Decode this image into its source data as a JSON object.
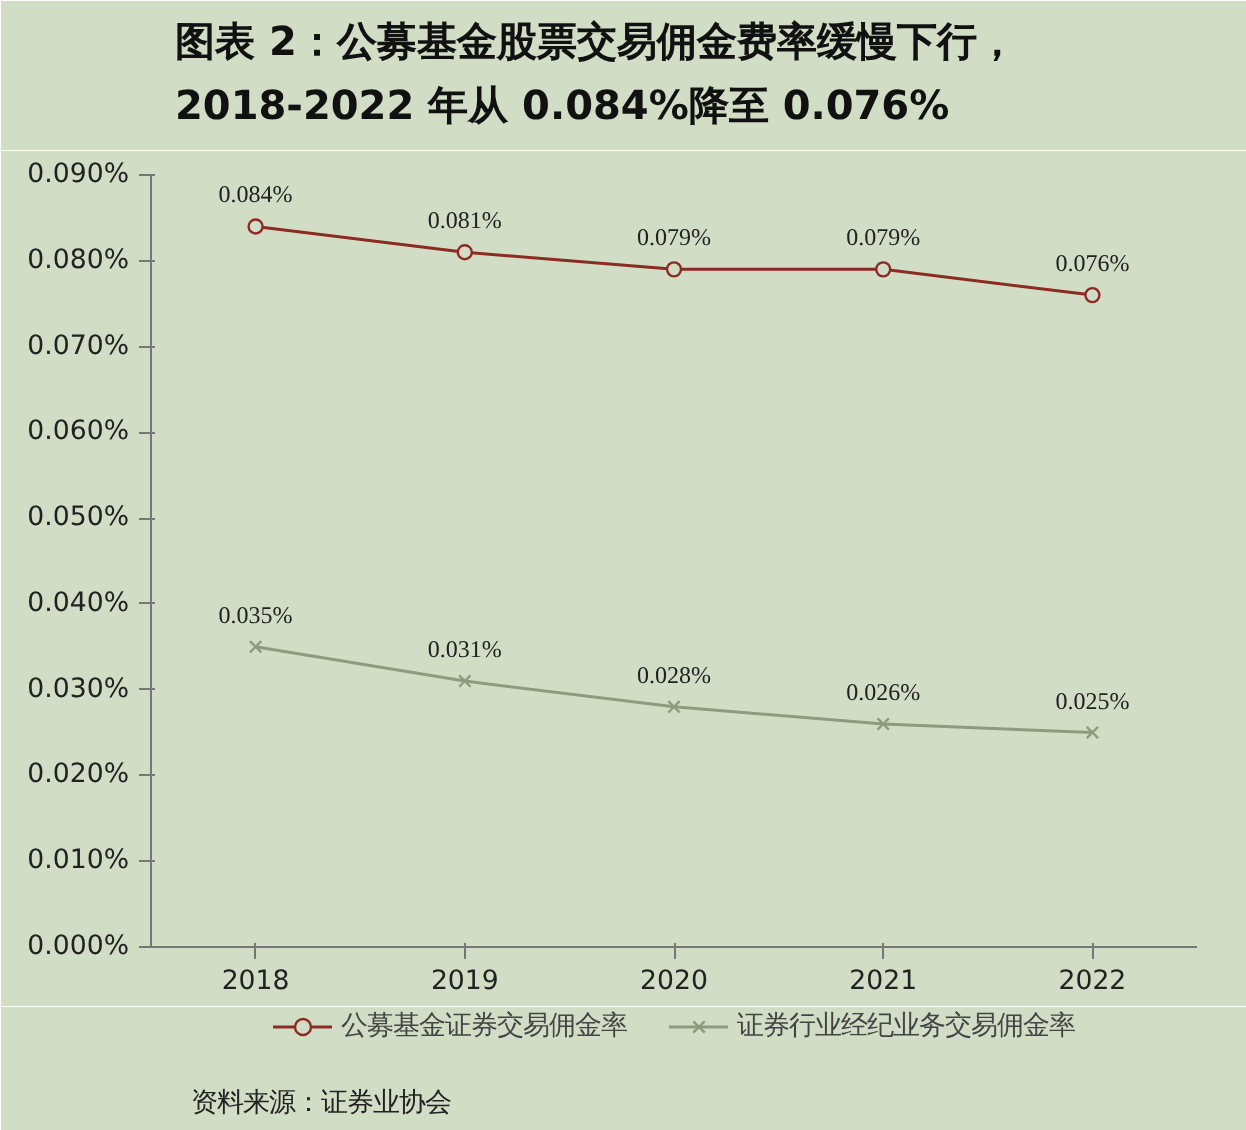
{
  "chart_data": {
    "type": "line",
    "title": "图表 2：公募基金股票交易佣金费率缓慢下行，\n2018-2022 年从 0.084%降至 0.076%",
    "categories": [
      "2018",
      "2019",
      "2020",
      "2021",
      "2022"
    ],
    "series": [
      {
        "name": "公募基金证券交易佣金率",
        "color": "#8b2b24",
        "marker": "circle",
        "values": [
          0.084,
          0.081,
          0.079,
          0.079,
          0.076
        ],
        "value_labels": [
          "0.084%",
          "0.081%",
          "0.079%",
          "0.079%",
          "0.076%"
        ]
      },
      {
        "name": "证券行业经纪业务交易佣金率",
        "color": "#8f9a80",
        "marker": "cross",
        "values": [
          0.035,
          0.031,
          0.028,
          0.026,
          0.025
        ],
        "value_labels": [
          "0.035%",
          "0.031%",
          "0.028%",
          "0.026%",
          "0.025%"
        ]
      }
    ],
    "ylim": [
      0,
      0.09
    ],
    "yticks": [
      {
        "value": 0,
        "label": "0.000%"
      },
      {
        "value": 0.01,
        "label": "0.010%"
      },
      {
        "value": 0.02,
        "label": "0.020%"
      },
      {
        "value": 0.03,
        "label": "0.030%"
      },
      {
        "value": 0.04,
        "label": "0.040%"
      },
      {
        "value": 0.05,
        "label": "0.050%"
      },
      {
        "value": 0.06,
        "label": "0.060%"
      },
      {
        "value": 0.07,
        "label": "0.070%"
      },
      {
        "value": 0.08,
        "label": "0.080%"
      },
      {
        "value": 0.09,
        "label": "0.090%"
      }
    ],
    "legend": "bottom",
    "grid": false,
    "line_style": "solid",
    "annotations": [
      "资料来源：证券业协会"
    ]
  }
}
